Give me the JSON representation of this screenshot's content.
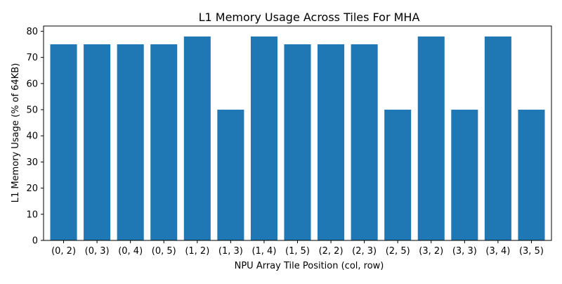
{
  "chart_data": {
    "type": "bar",
    "title": "L1 Memory Usage Across Tiles For MHA",
    "xlabel": "NPU Array Tile Position (col, row)",
    "ylabel": "L1 Memory Usage (% of 64KB)",
    "categories": [
      "(0, 2)",
      "(0, 3)",
      "(0, 4)",
      "(0, 5)",
      "(1, 2)",
      "(1, 3)",
      "(1, 4)",
      "(1, 5)",
      "(2, 2)",
      "(2, 3)",
      "(2, 5)",
      "(3, 2)",
      "(3, 3)",
      "(3, 4)",
      "(3, 5)"
    ],
    "values": [
      75,
      75,
      75,
      75,
      78,
      50,
      78,
      75,
      75,
      75,
      50,
      78,
      50,
      78,
      50
    ],
    "ylim": [
      0,
      82
    ],
    "yticks": [
      0,
      10,
      20,
      30,
      40,
      50,
      60,
      70,
      80
    ],
    "grid": false,
    "bar_color": "#1f77b4"
  }
}
